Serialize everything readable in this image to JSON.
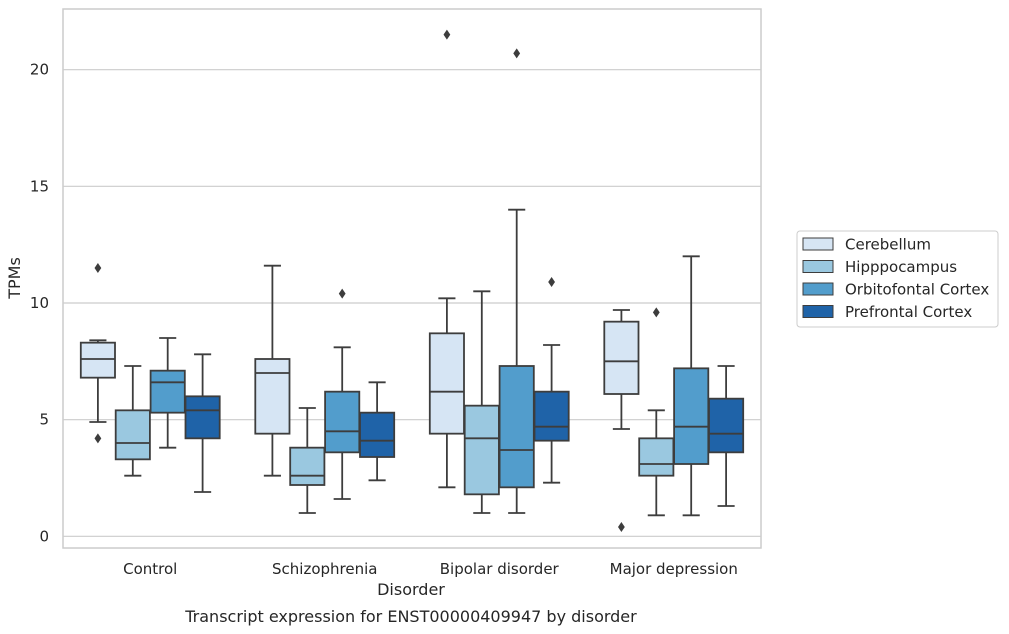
{
  "caption": "Transcript expression for ENST00000409947 by disorder",
  "chart_data": {
    "type": "boxplot",
    "xlabel": "Disorder",
    "ylabel": "TPMs",
    "ylim": [
      -0.5,
      22.6
    ],
    "yticks": [
      0,
      5,
      10,
      15,
      20
    ],
    "grid": "horizontal",
    "legend_position": "right",
    "categories": [
      "Control",
      "Schizophrenia",
      "Bipolar disorder",
      "Major depression"
    ],
    "series": [
      {
        "name": "Cerebellum",
        "color": "#d6e5f4",
        "boxes": [
          {
            "whisker_low": 4.9,
            "q1": 6.8,
            "median": 7.6,
            "q3": 8.3,
            "whisker_high": 8.4,
            "outliers": [
              11.5,
              4.2
            ]
          },
          {
            "whisker_low": 2.6,
            "q1": 4.4,
            "median": 7.0,
            "q3": 7.6,
            "whisker_high": 11.6,
            "outliers": []
          },
          {
            "whisker_low": 2.1,
            "q1": 4.4,
            "median": 6.2,
            "q3": 8.7,
            "whisker_high": 10.2,
            "outliers": [
              21.5
            ]
          },
          {
            "whisker_low": 4.6,
            "q1": 6.1,
            "median": 7.5,
            "q3": 9.2,
            "whisker_high": 9.7,
            "outliers": [
              0.4
            ]
          }
        ]
      },
      {
        "name": "Hipppocampus",
        "color": "#9ac8e0",
        "boxes": [
          {
            "whisker_low": 2.6,
            "q1": 3.3,
            "median": 4.0,
            "q3": 5.4,
            "whisker_high": 7.3,
            "outliers": []
          },
          {
            "whisker_low": 1.0,
            "q1": 2.2,
            "median": 2.6,
            "q3": 3.8,
            "whisker_high": 5.5,
            "outliers": []
          },
          {
            "whisker_low": 1.0,
            "q1": 1.8,
            "median": 4.2,
            "q3": 5.6,
            "whisker_high": 10.5,
            "outliers": []
          },
          {
            "whisker_low": 0.9,
            "q1": 2.6,
            "median": 3.1,
            "q3": 4.2,
            "whisker_high": 5.4,
            "outliers": [
              9.6
            ]
          }
        ]
      },
      {
        "name": "Orbitofontal Cortex",
        "color": "#529dcc",
        "boxes": [
          {
            "whisker_low": 3.8,
            "q1": 5.3,
            "median": 6.6,
            "q3": 7.1,
            "whisker_high": 8.5,
            "outliers": []
          },
          {
            "whisker_low": 1.6,
            "q1": 3.6,
            "median": 4.5,
            "q3": 6.2,
            "whisker_high": 8.1,
            "outliers": [
              10.4
            ]
          },
          {
            "whisker_low": 1.0,
            "q1": 2.1,
            "median": 3.7,
            "q3": 7.3,
            "whisker_high": 14.0,
            "outliers": [
              20.7
            ]
          },
          {
            "whisker_low": 0.9,
            "q1": 3.1,
            "median": 4.7,
            "q3": 7.2,
            "whisker_high": 12.0,
            "outliers": []
          }
        ]
      },
      {
        "name": "Prefrontal Cortex",
        "color": "#1f63a8",
        "boxes": [
          {
            "whisker_low": 1.9,
            "q1": 4.2,
            "median": 5.4,
            "q3": 6.0,
            "whisker_high": 7.8,
            "outliers": []
          },
          {
            "whisker_low": 2.4,
            "q1": 3.4,
            "median": 4.1,
            "q3": 5.3,
            "whisker_high": 6.6,
            "outliers": []
          },
          {
            "whisker_low": 2.3,
            "q1": 4.1,
            "median": 4.7,
            "q3": 6.2,
            "whisker_high": 8.2,
            "outliers": [
              10.9
            ]
          },
          {
            "whisker_low": 1.3,
            "q1": 3.6,
            "median": 4.4,
            "q3": 5.9,
            "whisker_high": 7.3,
            "outliers": []
          }
        ]
      }
    ]
  }
}
